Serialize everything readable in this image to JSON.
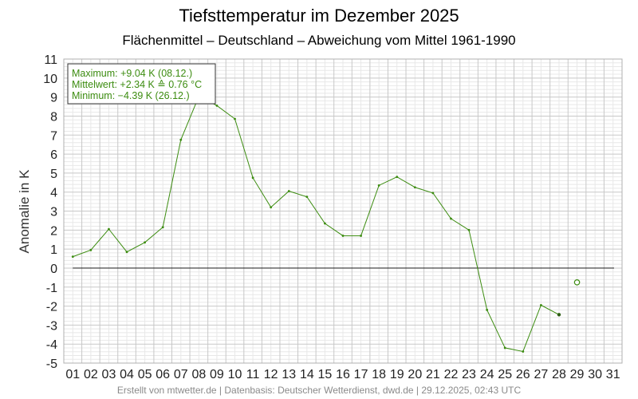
{
  "chart_data": {
    "type": "line",
    "title": "Tiefsttemperatur im Dezember 2025",
    "subtitle": "Flächenmittel – Deutschland – Abweichung vom Mittel 1961-1990",
    "xlabel": "",
    "ylabel": "Anomalie in K",
    "categories": [
      "01",
      "02",
      "03",
      "04",
      "05",
      "06",
      "07",
      "08",
      "09",
      "10",
      "11",
      "12",
      "13",
      "14",
      "15",
      "16",
      "17",
      "18",
      "19",
      "20",
      "21",
      "22",
      "23",
      "24",
      "25",
      "26",
      "27",
      "28",
      "29",
      "30",
      "31"
    ],
    "series": [
      {
        "values": [
          0.6,
          0.95,
          2.05,
          0.85,
          1.35,
          2.15,
          6.75,
          9.04,
          8.55,
          7.85,
          4.75,
          3.2,
          4.05,
          3.75,
          2.35,
          1.7,
          1.7,
          4.35,
          4.8,
          4.25,
          3.95,
          2.6,
          2.0,
          -2.2,
          -4.2,
          -4.39,
          -1.95,
          -2.45,
          null,
          null,
          null
        ],
        "color": "#3c8c10"
      }
    ],
    "extra_points": [
      {
        "x": "29",
        "y": -0.75,
        "marker": "open-circle"
      }
    ],
    "ylim": [
      -5,
      11
    ],
    "yticks": [
      "-5",
      "-4",
      "-3",
      "-2",
      "-1",
      "0",
      "1",
      "2",
      "3",
      "4",
      "5",
      "6",
      "7",
      "8",
      "9",
      "10",
      "11"
    ],
    "grid": true,
    "legend": {
      "position": "top-left",
      "lines": [
        "Maximum: +9.04 K  (08.12.)",
        "Mittelwert: +2.34 K  ≙  0.76 °C",
        "Minimum:  −4.39 K  (26.12.)"
      ]
    },
    "footer": "Erstellt von mtwetter.de | Datenbasis: Deutscher Wetterdienst, dwd.de | 29.12.2025, 02:43 UTC",
    "colors": {
      "line": "#3c8c10",
      "zero_line": "#000000",
      "grid_major": "#c8c8c8",
      "grid_minor": "#e8e8e8"
    }
  }
}
